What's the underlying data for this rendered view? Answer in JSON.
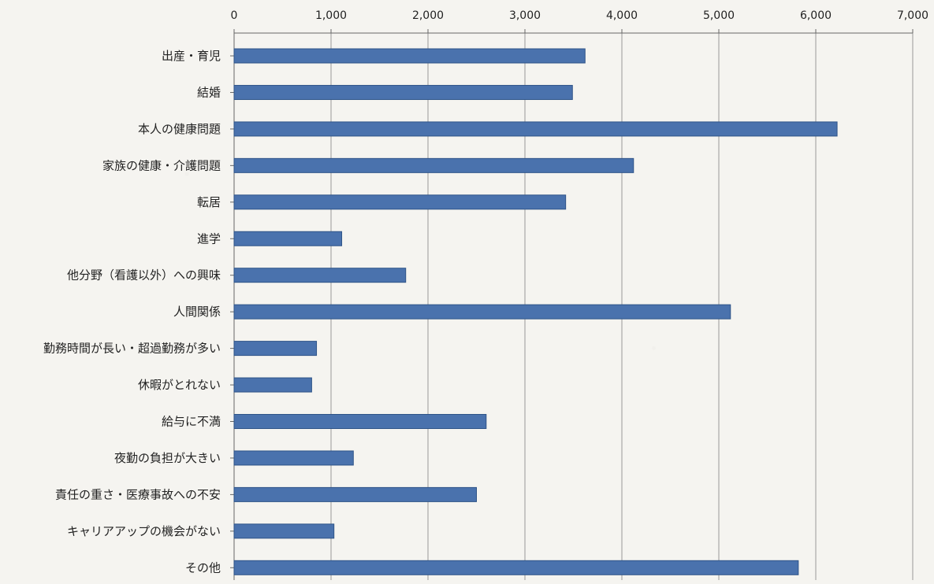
{
  "chart_data": {
    "type": "bar",
    "orientation": "horizontal",
    "categories": [
      "出産・育児",
      "結婚",
      "本人の健康問題",
      "家族の健康・介護問題",
      "転居",
      "進学",
      "他分野（看護以外）への興味",
      "人間関係",
      "勤務時間が長い・超過勤務が多い",
      "休暇がとれない",
      "給与に不満",
      "夜勤の負担が大きい",
      "責任の重さ・医療事故への不安",
      "キャリアアップの機会がない",
      "その他"
    ],
    "values": [
      3620,
      3490,
      6220,
      4120,
      3420,
      1110,
      1770,
      5120,
      850,
      800,
      2600,
      1230,
      2500,
      1030,
      5820
    ],
    "xlim": [
      0,
      7000
    ],
    "x_ticks": [
      0,
      1000,
      2000,
      3000,
      4000,
      5000,
      6000,
      7000
    ],
    "x_tick_labels": [
      "0",
      "1,000",
      "2,000",
      "3,000",
      "4,000",
      "5,000",
      "6,000",
      "7,000"
    ],
    "x_axis_position": "top",
    "grid": true,
    "title": "",
    "xlabel": "",
    "ylabel": "",
    "colors": {
      "bar_fill": "#4a72ad",
      "bar_stroke": "#2f5488",
      "grid": "#999999",
      "axis": "#666666",
      "text": "#222222",
      "background": "#f5f4f0"
    }
  }
}
